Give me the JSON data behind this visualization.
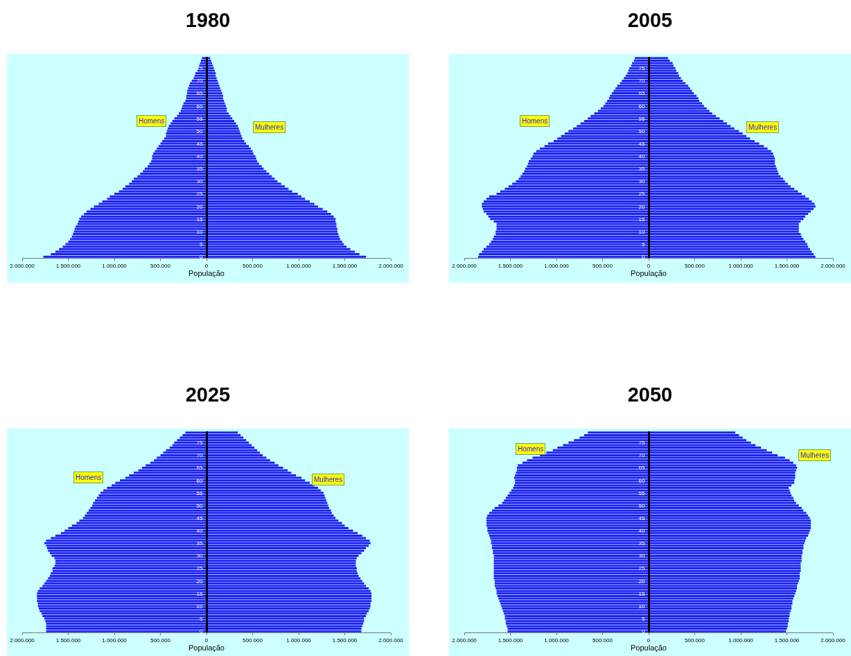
{
  "chart_data": [
    {
      "type": "bar",
      "title": "1980",
      "xlabel": "População",
      "orientation": "horizontal",
      "stacked": true,
      "legend": false,
      "grid": false,
      "categories": [
        null,
        null,
        null,
        null,
        "75",
        null,
        null,
        null,
        null,
        "70",
        null,
        null,
        null,
        null,
        "65",
        null,
        null,
        null,
        null,
        "60",
        null,
        null,
        null,
        null,
        "55",
        null,
        null,
        null,
        null,
        "50",
        null,
        null,
        null,
        null,
        "45",
        null,
        null,
        null,
        null,
        "40",
        null,
        null,
        null,
        null,
        "35",
        null,
        null,
        null,
        null,
        "30",
        null,
        null,
        null,
        null,
        "25",
        null,
        null,
        null,
        null,
        "20",
        null,
        null,
        null,
        null,
        "15",
        null,
        null,
        null,
        null,
        "10",
        null,
        null,
        null,
        null,
        "5",
        null,
        null,
        null,
        null,
        "0"
      ],
      "xlim": [
        -2000000,
        2000000
      ],
      "xticks": [
        {
          "value": -2000000,
          "label": "2.000.000"
        },
        {
          "value": -1500000,
          "label": "1.500.000"
        },
        {
          "value": -1000000,
          "label": "1.000.000"
        },
        {
          "value": -500000,
          "label": "500.000"
        },
        {
          "value": 0,
          "label": "0"
        },
        {
          "value": 500000,
          "label": "500.000"
        },
        {
          "value": 1000000,
          "label": "1.000.000"
        },
        {
          "value": 1500000,
          "label": "1.500.000"
        },
        {
          "value": 2000000,
          "label": "2.000.000"
        }
      ],
      "series": [
        {
          "name": "Homens",
          "color": "#1f1ff5",
          "values": [
            -50000,
            -60000,
            -70000,
            -80000,
            -90000,
            -100000,
            -120000,
            -130000,
            -140000,
            -160000,
            -180000,
            -190000,
            -200000,
            -210000,
            -210000,
            -220000,
            -220000,
            -230000,
            -250000,
            -260000,
            -270000,
            -280000,
            -300000,
            -320000,
            -350000,
            -370000,
            -390000,
            -410000,
            -420000,
            -430000,
            -440000,
            -440000,
            -460000,
            -480000,
            -500000,
            -520000,
            -540000,
            -560000,
            -580000,
            -590000,
            -590000,
            -600000,
            -620000,
            -640000,
            -670000,
            -690000,
            -720000,
            -750000,
            -790000,
            -810000,
            -840000,
            -880000,
            -910000,
            -950000,
            -1000000,
            -1050000,
            -1080000,
            -1130000,
            -1170000,
            -1220000,
            -1260000,
            -1300000,
            -1330000,
            -1360000,
            -1380000,
            -1390000,
            -1400000,
            -1420000,
            -1430000,
            -1440000,
            -1450000,
            -1460000,
            -1480000,
            -1500000,
            -1530000,
            -1560000,
            -1600000,
            -1640000,
            -1690000,
            -1770000
          ]
        },
        {
          "name": "Mulheres",
          "color": "#1f1ff5",
          "values": [
            40000,
            50000,
            60000,
            70000,
            80000,
            90000,
            100000,
            100000,
            110000,
            120000,
            130000,
            140000,
            150000,
            160000,
            170000,
            180000,
            180000,
            190000,
            200000,
            210000,
            220000,
            220000,
            240000,
            260000,
            280000,
            300000,
            320000,
            340000,
            350000,
            360000,
            370000,
            380000,
            390000,
            410000,
            430000,
            460000,
            480000,
            500000,
            510000,
            530000,
            540000,
            550000,
            570000,
            600000,
            620000,
            650000,
            680000,
            710000,
            740000,
            770000,
            810000,
            850000,
            890000,
            930000,
            990000,
            1030000,
            1070000,
            1120000,
            1170000,
            1210000,
            1260000,
            1310000,
            1350000,
            1380000,
            1400000,
            1400000,
            1410000,
            1410000,
            1420000,
            1420000,
            1430000,
            1440000,
            1450000,
            1470000,
            1490000,
            1520000,
            1560000,
            1610000,
            1660000,
            1730000
          ]
        }
      ]
    },
    {
      "type": "bar",
      "title": "2005",
      "xlabel": "População",
      "orientation": "horizontal",
      "stacked": true,
      "legend": false,
      "grid": false,
      "categories": [
        null,
        null,
        null,
        null,
        "75",
        null,
        null,
        null,
        null,
        "70",
        null,
        null,
        null,
        null,
        "65",
        null,
        null,
        null,
        null,
        "60",
        null,
        null,
        null,
        null,
        "55",
        null,
        null,
        null,
        null,
        "50",
        null,
        null,
        null,
        null,
        "45",
        null,
        null,
        null,
        null,
        "40",
        null,
        null,
        null,
        null,
        "35",
        null,
        null,
        null,
        null,
        "30",
        null,
        null,
        null,
        null,
        "25",
        null,
        null,
        null,
        null,
        "20",
        null,
        null,
        null,
        null,
        "15",
        null,
        null,
        null,
        null,
        "10",
        null,
        null,
        null,
        null,
        "5",
        null,
        null,
        null,
        null,
        "0"
      ],
      "xlim": [
        -2000000,
        2000000
      ],
      "xticks": [
        {
          "value": -2000000,
          "label": "2.000.000"
        },
        {
          "value": -1500000,
          "label": "1.500.000"
        },
        {
          "value": -1000000,
          "label": "1.000.000"
        },
        {
          "value": -500000,
          "label": "500.000"
        },
        {
          "value": 0,
          "label": "0"
        },
        {
          "value": 500000,
          "label": "500.000"
        },
        {
          "value": 1000000,
          "label": "1.000.000"
        },
        {
          "value": 1500000,
          "label": "1.500.000"
        },
        {
          "value": 2000000,
          "label": "2.000.000"
        }
      ],
      "series": [
        {
          "name": "Homens",
          "color": "#1f1ff5",
          "values": [
            -150000,
            -160000,
            -180000,
            -190000,
            -210000,
            -220000,
            -230000,
            -250000,
            -270000,
            -290000,
            -310000,
            -340000,
            -360000,
            -380000,
            -400000,
            -420000,
            -430000,
            -450000,
            -470000,
            -490000,
            -520000,
            -550000,
            -590000,
            -630000,
            -660000,
            -700000,
            -740000,
            -780000,
            -820000,
            -870000,
            -910000,
            -950000,
            -990000,
            -1030000,
            -1090000,
            -1130000,
            -1180000,
            -1220000,
            -1250000,
            -1260000,
            -1280000,
            -1300000,
            -1310000,
            -1320000,
            -1340000,
            -1350000,
            -1370000,
            -1390000,
            -1410000,
            -1440000,
            -1480000,
            -1520000,
            -1560000,
            -1610000,
            -1650000,
            -1730000,
            -1760000,
            -1790000,
            -1810000,
            -1810000,
            -1800000,
            -1790000,
            -1760000,
            -1740000,
            -1720000,
            -1680000,
            -1650000,
            -1650000,
            -1650000,
            -1660000,
            -1660000,
            -1680000,
            -1690000,
            -1710000,
            -1730000,
            -1760000,
            -1790000,
            -1810000,
            -1840000,
            -1850000
          ]
        },
        {
          "name": "Mulheres",
          "color": "#1f1ff5",
          "values": [
            210000,
            230000,
            260000,
            270000,
            290000,
            300000,
            320000,
            330000,
            350000,
            370000,
            400000,
            430000,
            450000,
            470000,
            490000,
            520000,
            540000,
            550000,
            580000,
            600000,
            630000,
            660000,
            690000,
            730000,
            770000,
            810000,
            850000,
            890000,
            930000,
            980000,
            1020000,
            1060000,
            1100000,
            1150000,
            1200000,
            1250000,
            1290000,
            1330000,
            1350000,
            1360000,
            1370000,
            1370000,
            1370000,
            1380000,
            1390000,
            1400000,
            1410000,
            1430000,
            1460000,
            1480000,
            1510000,
            1540000,
            1580000,
            1620000,
            1660000,
            1700000,
            1740000,
            1770000,
            1800000,
            1810000,
            1790000,
            1760000,
            1730000,
            1700000,
            1680000,
            1650000,
            1630000,
            1630000,
            1630000,
            1630000,
            1650000,
            1660000,
            1680000,
            1700000,
            1720000,
            1730000,
            1750000,
            1770000,
            1790000,
            1810000
          ]
        }
      ]
    },
    {
      "type": "bar",
      "title": "2025",
      "xlabel": "População",
      "orientation": "horizontal",
      "stacked": true,
      "legend": false,
      "grid": false,
      "categories": [
        null,
        null,
        null,
        null,
        "75",
        null,
        null,
        null,
        null,
        "70",
        null,
        null,
        null,
        null,
        "65",
        null,
        null,
        null,
        null,
        "60",
        null,
        null,
        null,
        null,
        "55",
        null,
        null,
        null,
        null,
        "50",
        null,
        null,
        null,
        null,
        "45",
        null,
        null,
        null,
        null,
        "40",
        null,
        null,
        null,
        null,
        "35",
        null,
        null,
        null,
        null,
        "30",
        null,
        null,
        null,
        null,
        "25",
        null,
        null,
        null,
        null,
        "20",
        null,
        null,
        null,
        null,
        "15",
        null,
        null,
        null,
        null,
        "10",
        null,
        null,
        null,
        null,
        "5",
        null,
        null,
        null,
        null,
        "0"
      ],
      "xlim": [
        -2000000,
        2000000
      ],
      "xticks": [
        {
          "value": -2000000,
          "label": "2.000.000"
        },
        {
          "value": -1500000,
          "label": "1.500.000"
        },
        {
          "value": -1000000,
          "label": "1.000.000"
        },
        {
          "value": -500000,
          "label": "500.000"
        },
        {
          "value": 0,
          "label": "0"
        },
        {
          "value": 500000,
          "label": "500.000"
        },
        {
          "value": 1000000,
          "label": "1.000.000"
        },
        {
          "value": 1500000,
          "label": "1.500.000"
        },
        {
          "value": 2000000,
          "label": "2.000.000"
        }
      ],
      "series": [
        {
          "name": "Homens",
          "color": "#1f1ff5",
          "values": [
            -230000,
            -260000,
            -290000,
            -320000,
            -350000,
            -370000,
            -400000,
            -440000,
            -470000,
            -500000,
            -540000,
            -570000,
            -610000,
            -660000,
            -700000,
            -740000,
            -790000,
            -840000,
            -880000,
            -940000,
            -990000,
            -1030000,
            -1080000,
            -1120000,
            -1150000,
            -1170000,
            -1190000,
            -1210000,
            -1230000,
            -1240000,
            -1260000,
            -1280000,
            -1300000,
            -1320000,
            -1340000,
            -1380000,
            -1410000,
            -1460000,
            -1500000,
            -1540000,
            -1580000,
            -1640000,
            -1690000,
            -1740000,
            -1760000,
            -1740000,
            -1730000,
            -1720000,
            -1700000,
            -1680000,
            -1650000,
            -1640000,
            -1640000,
            -1650000,
            -1670000,
            -1670000,
            -1690000,
            -1700000,
            -1720000,
            -1740000,
            -1760000,
            -1780000,
            -1810000,
            -1830000,
            -1840000,
            -1840000,
            -1840000,
            -1840000,
            -1830000,
            -1830000,
            -1820000,
            -1810000,
            -1790000,
            -1780000,
            -1760000,
            -1750000,
            -1740000,
            -1740000,
            -1740000,
            -1740000
          ]
        },
        {
          "name": "Mulheres",
          "color": "#1f1ff5",
          "values": [
            340000,
            370000,
            400000,
            430000,
            460000,
            490000,
            520000,
            550000,
            580000,
            610000,
            650000,
            690000,
            740000,
            780000,
            830000,
            880000,
            920000,
            970000,
            1030000,
            1070000,
            1120000,
            1170000,
            1210000,
            1240000,
            1270000,
            1280000,
            1290000,
            1300000,
            1310000,
            1320000,
            1330000,
            1350000,
            1360000,
            1380000,
            1400000,
            1430000,
            1470000,
            1500000,
            1540000,
            1590000,
            1640000,
            1690000,
            1730000,
            1770000,
            1780000,
            1760000,
            1730000,
            1710000,
            1680000,
            1650000,
            1630000,
            1620000,
            1620000,
            1620000,
            1630000,
            1630000,
            1640000,
            1650000,
            1670000,
            1690000,
            1710000,
            1730000,
            1760000,
            1780000,
            1790000,
            1790000,
            1790000,
            1790000,
            1780000,
            1780000,
            1770000,
            1760000,
            1740000,
            1730000,
            1710000,
            1710000,
            1700000,
            1690000,
            1680000,
            1680000
          ]
        }
      ]
    },
    {
      "type": "bar",
      "title": "2050",
      "xlabel": "População",
      "orientation": "horizontal",
      "stacked": true,
      "legend": false,
      "grid": false,
      "categories": [
        null,
        null,
        null,
        null,
        "75",
        null,
        null,
        null,
        null,
        "70",
        null,
        null,
        null,
        null,
        "65",
        null,
        null,
        null,
        null,
        "60",
        null,
        null,
        null,
        null,
        "55",
        null,
        null,
        null,
        null,
        "50",
        null,
        null,
        null,
        null,
        "45",
        null,
        null,
        null,
        null,
        "40",
        null,
        null,
        null,
        null,
        "35",
        null,
        null,
        null,
        null,
        "30",
        null,
        null,
        null,
        null,
        "25",
        null,
        null,
        null,
        null,
        "20",
        null,
        null,
        null,
        null,
        "15",
        null,
        null,
        null,
        null,
        "10",
        null,
        null,
        null,
        null,
        "5",
        null,
        null,
        null,
        null,
        "0"
      ],
      "xlim": [
        -2000000,
        2000000
      ],
      "xticks": [
        {
          "value": -2000000,
          "label": "2.000.000"
        },
        {
          "value": -1500000,
          "label": "1.500.000"
        },
        {
          "value": -1000000,
          "label": "1.000.000"
        },
        {
          "value": -500000,
          "label": "500.000"
        },
        {
          "value": 0,
          "label": "0"
        },
        {
          "value": 500000,
          "label": "500.000"
        },
        {
          "value": 1000000,
          "label": "1.000.000"
        },
        {
          "value": 1500000,
          "label": "1.500.000"
        },
        {
          "value": 2000000,
          "label": "2.000.000"
        }
      ],
      "series": [
        {
          "name": "Homens",
          "color": "#1f1ff5",
          "values": [
            -660000,
            -700000,
            -750000,
            -810000,
            -870000,
            -930000,
            -990000,
            -1040000,
            -1110000,
            -1180000,
            -1260000,
            -1320000,
            -1370000,
            -1420000,
            -1430000,
            -1430000,
            -1440000,
            -1450000,
            -1460000,
            -1450000,
            -1450000,
            -1460000,
            -1470000,
            -1490000,
            -1510000,
            -1530000,
            -1550000,
            -1570000,
            -1590000,
            -1630000,
            -1670000,
            -1700000,
            -1730000,
            -1750000,
            -1760000,
            -1760000,
            -1760000,
            -1760000,
            -1750000,
            -1750000,
            -1740000,
            -1730000,
            -1720000,
            -1710000,
            -1710000,
            -1700000,
            -1700000,
            -1690000,
            -1690000,
            -1680000,
            -1680000,
            -1680000,
            -1680000,
            -1680000,
            -1680000,
            -1680000,
            -1680000,
            -1680000,
            -1680000,
            -1670000,
            -1670000,
            -1670000,
            -1660000,
            -1650000,
            -1650000,
            -1640000,
            -1630000,
            -1620000,
            -1610000,
            -1600000,
            -1590000,
            -1580000,
            -1570000,
            -1560000,
            -1560000,
            -1550000,
            -1550000,
            -1540000,
            -1530000,
            -1530000
          ]
        },
        {
          "name": "Mulheres",
          "color": "#1f1ff5",
          "values": [
            940000,
            980000,
            1020000,
            1060000,
            1110000,
            1160000,
            1220000,
            1280000,
            1340000,
            1400000,
            1480000,
            1530000,
            1570000,
            1600000,
            1610000,
            1600000,
            1590000,
            1590000,
            1590000,
            1580000,
            1580000,
            1550000,
            1520000,
            1530000,
            1540000,
            1550000,
            1570000,
            1580000,
            1600000,
            1630000,
            1660000,
            1680000,
            1710000,
            1730000,
            1750000,
            1760000,
            1760000,
            1760000,
            1760000,
            1750000,
            1740000,
            1730000,
            1710000,
            1700000,
            1690000,
            1680000,
            1680000,
            1670000,
            1670000,
            1660000,
            1660000,
            1660000,
            1650000,
            1650000,
            1650000,
            1650000,
            1640000,
            1640000,
            1640000,
            1630000,
            1620000,
            1610000,
            1610000,
            1600000,
            1590000,
            1580000,
            1570000,
            1560000,
            1560000,
            1550000,
            1550000,
            1540000,
            1530000,
            1530000,
            1520000,
            1520000,
            1510000,
            1510000,
            1500000,
            1490000
          ]
        }
      ]
    }
  ]
}
